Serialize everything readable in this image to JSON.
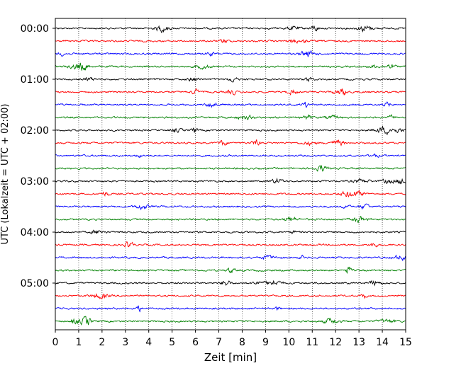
{
  "chart_data": {
    "type": "line",
    "title": "",
    "xlabel": "Zeit  [min]",
    "ylabel": "UTC (Lokalzeit = UTC + 02:00)",
    "xlim": [
      0,
      15
    ],
    "x_ticks": [
      "0",
      "1",
      "2",
      "3",
      "4",
      "5",
      "6",
      "7",
      "8",
      "9",
      "10",
      "11",
      "12",
      "13",
      "14",
      "15"
    ],
    "y_ticks": [
      "00:00",
      "01:00",
      "02:00",
      "03:00",
      "04:00",
      "05:00"
    ],
    "rows_per_hour": 4,
    "grid": "vertical dotted at each minute",
    "row_colors": [
      "#000000",
      "#ff0000",
      "#0000ff",
      "#008000"
    ],
    "series": [
      {
        "start": "00:00",
        "color": "#000000"
      },
      {
        "start": "00:15",
        "color": "#ff0000"
      },
      {
        "start": "00:30",
        "color": "#0000ff"
      },
      {
        "start": "00:45",
        "color": "#008000"
      },
      {
        "start": "01:00",
        "color": "#000000"
      },
      {
        "start": "01:15",
        "color": "#ff0000"
      },
      {
        "start": "01:30",
        "color": "#0000ff"
      },
      {
        "start": "01:45",
        "color": "#008000"
      },
      {
        "start": "02:00",
        "color": "#000000"
      },
      {
        "start": "02:15",
        "color": "#ff0000"
      },
      {
        "start": "02:30",
        "color": "#0000ff"
      },
      {
        "start": "02:45",
        "color": "#008000"
      },
      {
        "start": "03:00",
        "color": "#000000"
      },
      {
        "start": "03:15",
        "color": "#ff0000"
      },
      {
        "start": "03:30",
        "color": "#0000ff"
      },
      {
        "start": "03:45",
        "color": "#008000"
      },
      {
        "start": "04:00",
        "color": "#000000"
      },
      {
        "start": "04:15",
        "color": "#ff0000"
      },
      {
        "start": "04:30",
        "color": "#0000ff"
      },
      {
        "start": "04:45",
        "color": "#008000"
      },
      {
        "start": "05:00",
        "color": "#000000"
      },
      {
        "start": "05:15",
        "color": "#ff0000"
      },
      {
        "start": "05:30",
        "color": "#0000ff"
      },
      {
        "start": "05:45",
        "color": "#008000"
      }
    ]
  }
}
